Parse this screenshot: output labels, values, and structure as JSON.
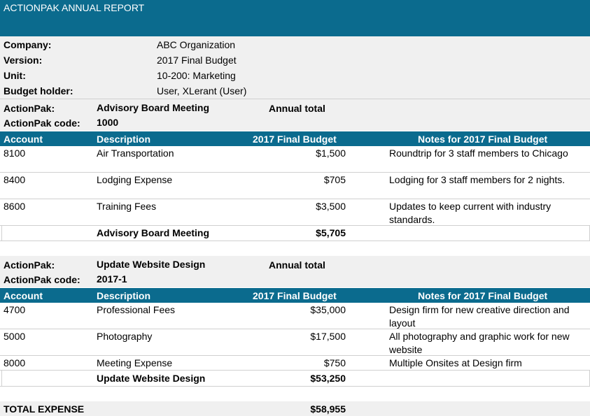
{
  "report": {
    "title": "ACTIONPAK ANNUAL REPORT"
  },
  "info": {
    "company_label": "Company:",
    "company_value": "ABC Organization",
    "version_label": "Version:",
    "version_value": "2017 Final Budget",
    "unit_label": "Unit:",
    "unit_value": "10-200: Marketing",
    "holder_label": "Budget holder:",
    "holder_value": "User, XLerant (User)"
  },
  "columns": {
    "account": "Account",
    "description": "Description",
    "budget": "2017 Final Budget",
    "notes": "Notes  for 2017 Final Budget"
  },
  "sections": [
    {
      "actionpak_label": "ActionPak:",
      "actionpak_name": "Advisory Board Meeting",
      "annual_total_label": "Annual total",
      "code_label": "ActionPak code:",
      "code_value": "1000",
      "rows": [
        {
          "account": "8100",
          "description": "Air Transportation",
          "amount": "$1,500",
          "note": "Roundtrip for 3 staff members to Chicago"
        },
        {
          "account": "8400",
          "description": "Lodging Expense",
          "amount": "$705",
          "note": "Lodging for 3 staff members for 2 nights."
        },
        {
          "account": "8600",
          "description": "Training Fees",
          "amount": "$3,500",
          "note": "Updates to keep current with industry standards."
        }
      ],
      "subtotal_label": "Advisory Board Meeting",
      "subtotal_amount": "$5,705"
    },
    {
      "actionpak_label": "ActionPak:",
      "actionpak_name": "Update Website Design",
      "annual_total_label": "Annual total",
      "code_label": "ActionPak code:",
      "code_value": "2017-1",
      "rows": [
        {
          "account": "4700",
          "description": "Professional Fees",
          "amount": "$35,000",
          "note": "Design firm for new creative direction and layout"
        },
        {
          "account": "5000",
          "description": "Photography",
          "amount": "$17,500",
          "note": "All photography and graphic work for new website"
        },
        {
          "account": "8000",
          "description": "Meeting Expense",
          "amount": "$750",
          "note": "Multiple Onsites at Design firm"
        }
      ],
      "subtotal_label": "Update Website Design",
      "subtotal_amount": "$53,250"
    }
  ],
  "total": {
    "label": "TOTAL EXPENSE",
    "amount": "$58,955"
  }
}
